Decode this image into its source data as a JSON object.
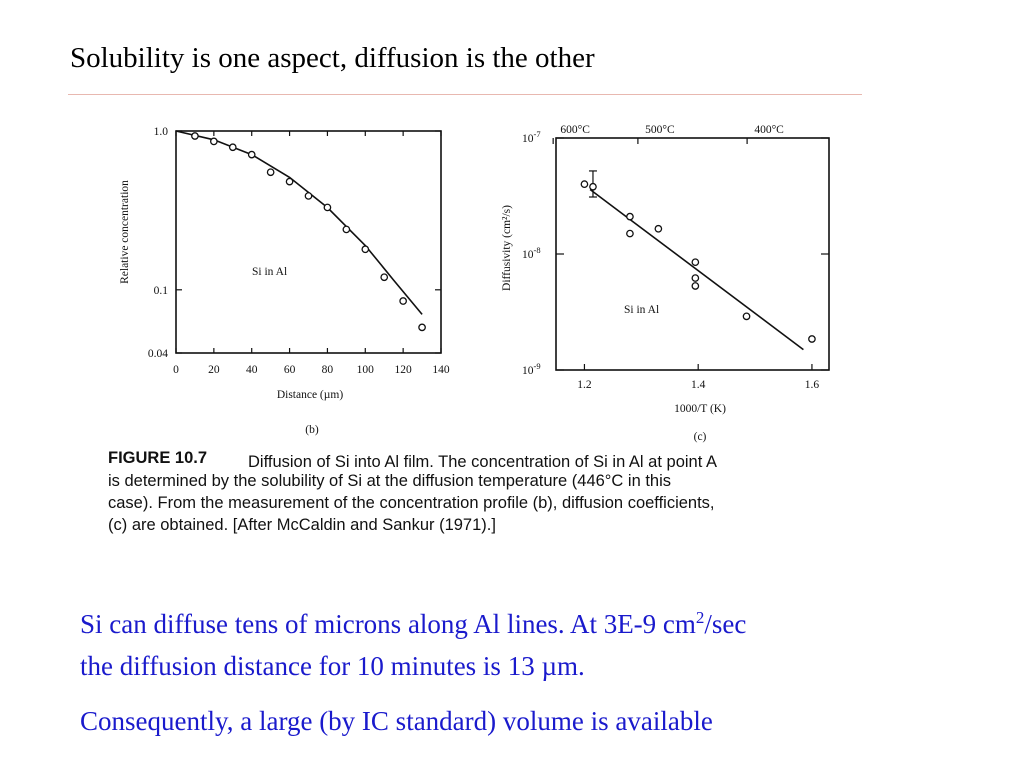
{
  "slide": {
    "title": "Solubility is one aspect, diffusion is the other",
    "para1_line1_a": "Si can diffuse tens of microns along Al lines.  At 3E-9 cm",
    "para1_line1_sup": "2",
    "para1_line1_b": "/sec",
    "para1_line2": "the diffusion distance for 10 minutes is 13 µm.",
    "para2": "Consequently, a large (by IC standard) volume is available"
  },
  "figure": {
    "caption_label": "FIGURE 10.7",
    "caption_lines": [
      "Diffusion of Si into Al film. The concentration of Si in Al at point A",
      "is determined by the solubility of Si at the diffusion temperature (446°C in this",
      "case). From the measurement of the concentration profile (b), diffusion coefficients,",
      "(c) are obtained. [After McCaldin and Sankur (1971).]"
    ]
  },
  "chart_data": [
    {
      "type": "scatter",
      "panel_label": "(b)",
      "annotation": "Si in Al",
      "xlabel": "Distance (µm)",
      "ylabel": "Relative concentration",
      "xlim": [
        0,
        140
      ],
      "ylim": [
        0.04,
        1.0
      ],
      "yscale": "log",
      "xticks": [
        "0",
        "20",
        "40",
        "60",
        "80",
        "100",
        "120",
        "140"
      ],
      "yticks": [
        {
          "value": 1.0,
          "label": "1.0"
        },
        {
          "value": 0.1,
          "label": "0.1"
        },
        {
          "value": 0.04,
          "label": "0.04"
        }
      ],
      "grid": false,
      "points": [
        {
          "x": 10,
          "y": 0.93
        },
        {
          "x": 20,
          "y": 0.86
        },
        {
          "x": 30,
          "y": 0.79
        },
        {
          "x": 40,
          "y": 0.71
        },
        {
          "x": 50,
          "y": 0.55
        },
        {
          "x": 60,
          "y": 0.48
        },
        {
          "x": 70,
          "y": 0.39
        },
        {
          "x": 80,
          "y": 0.33
        },
        {
          "x": 90,
          "y": 0.24
        },
        {
          "x": 100,
          "y": 0.18
        },
        {
          "x": 110,
          "y": 0.12
        },
        {
          "x": 120,
          "y": 0.085
        },
        {
          "x": 130,
          "y": 0.058
        }
      ],
      "fit_line": [
        {
          "x": 0,
          "y": 1.0
        },
        {
          "x": 20,
          "y": 0.88
        },
        {
          "x": 40,
          "y": 0.71
        },
        {
          "x": 60,
          "y": 0.51
        },
        {
          "x": 80,
          "y": 0.33
        },
        {
          "x": 100,
          "y": 0.19
        },
        {
          "x": 115,
          "y": 0.115
        },
        {
          "x": 130,
          "y": 0.07
        }
      ]
    },
    {
      "type": "scatter",
      "panel_label": "(c)",
      "annotation": "Si in Al",
      "xlabel": "1000/T (K)",
      "ylabel": "Diffusivity (cm²/s)",
      "xlim": [
        1.15,
        1.63
      ],
      "ylim": [
        1e-09,
        1e-07
      ],
      "yscale": "log",
      "xticks": [
        {
          "value": 1.2,
          "label": "1.2"
        },
        {
          "value": 1.4,
          "label": "1.4"
        },
        {
          "value": 1.6,
          "label": "1.6"
        }
      ],
      "yticks": [
        {
          "value": 1e-07,
          "base": "10",
          "exp": "-7"
        },
        {
          "value": 1e-08,
          "base": "10",
          "exp": "-8"
        },
        {
          "value": 1e-09,
          "base": "10",
          "exp": "-9"
        }
      ],
      "top_axis": [
        {
          "value": 1.145,
          "label": "600°C"
        },
        {
          "value": 1.294,
          "label": "500°C"
        },
        {
          "value": 1.486,
          "label": "400°C"
        }
      ],
      "grid": false,
      "points": [
        {
          "x": 1.2,
          "y": 4e-08
        },
        {
          "x": 1.215,
          "y": 3.8e-08
        },
        {
          "x": 1.28,
          "y": 2.1e-08
        },
        {
          "x": 1.28,
          "y": 1.5e-08
        },
        {
          "x": 1.33,
          "y": 1.65e-08
        },
        {
          "x": 1.395,
          "y": 8.5e-09
        },
        {
          "x": 1.395,
          "y": 6.2e-09
        },
        {
          "x": 1.395,
          "y": 5.3e-09
        },
        {
          "x": 1.485,
          "y": 2.9e-09
        },
        {
          "x": 1.6,
          "y": 1.85e-09
        }
      ],
      "error_bar": {
        "x": 1.215,
        "y_low": 3.1e-08,
        "y_high": 5.2e-08
      },
      "fit_line": [
        {
          "x": 1.21,
          "y": 3.6e-08
        },
        {
          "x": 1.585,
          "y": 1.5e-09
        }
      ]
    }
  ]
}
